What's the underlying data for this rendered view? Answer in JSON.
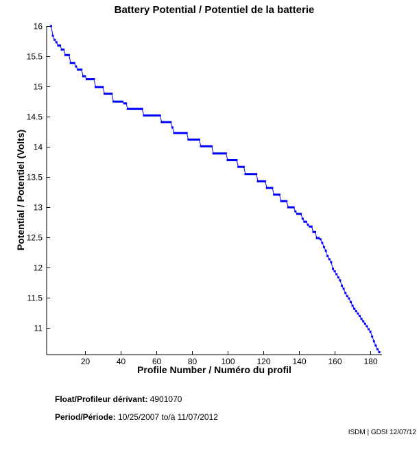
{
  "title": "Battery Potential / Potentiel de la batterie",
  "footer": {
    "float_label": "Float/Profileur dérivant:",
    "float_value": "4901070",
    "period_label": "Period/Période:",
    "period_value": "10/25/2007 to/à  11/07/2012",
    "credit": "ISDM | GDSI 12/07/12"
  },
  "chart_data": {
    "type": "line",
    "title": "Battery Potential / Potentiel de la batterie",
    "xlabel": "Profile Number / Numéro du profil",
    "ylabel": "Potential / Potentiel (Volts)",
    "line_color": "#0000FF",
    "axis_color": "#000000",
    "marker": "square",
    "grid": false,
    "legend": "none",
    "xlim": [
      -1.5,
      186.5
    ],
    "ylim": [
      10.56,
      16
    ],
    "x_ticks": [
      20,
      40,
      60,
      80,
      100,
      120,
      140,
      160,
      180
    ],
    "y_ticks": [
      11,
      11.5,
      12,
      12.5,
      13,
      13.5,
      14,
      14.5,
      15,
      15.5,
      16
    ],
    "series": [
      {
        "name": "battery-potential",
        "x_start": 1,
        "x_step": 1,
        "values": [
          16.0,
          15.84,
          15.77,
          15.73,
          15.68,
          15.68,
          15.61,
          15.61,
          15.52,
          15.52,
          15.52,
          15.39,
          15.39,
          15.39,
          15.33,
          15.28,
          15.28,
          15.28,
          15.17,
          15.17,
          15.12,
          15.12,
          15.12,
          15.12,
          15.12,
          14.99,
          14.99,
          14.99,
          14.99,
          14.99,
          14.88,
          14.88,
          14.88,
          14.88,
          14.88,
          14.75,
          14.75,
          14.75,
          14.75,
          14.75,
          14.75,
          14.72,
          14.72,
          14.63,
          14.63,
          14.63,
          14.63,
          14.63,
          14.63,
          14.63,
          14.63,
          14.63,
          14.52,
          14.52,
          14.52,
          14.52,
          14.52,
          14.52,
          14.52,
          14.52,
          14.52,
          14.52,
          14.41,
          14.41,
          14.41,
          14.41,
          14.41,
          14.41,
          14.32,
          14.23,
          14.23,
          14.23,
          14.23,
          14.23,
          14.23,
          14.23,
          14.23,
          14.12,
          14.12,
          14.12,
          14.12,
          14.12,
          14.12,
          14.12,
          14.01,
          14.01,
          14.01,
          14.01,
          14.01,
          14.01,
          14.01,
          13.89,
          13.89,
          13.89,
          13.89,
          13.89,
          13.89,
          13.89,
          13.89,
          13.78,
          13.78,
          13.78,
          13.78,
          13.78,
          13.78,
          13.67,
          13.67,
          13.67,
          13.67,
          13.55,
          13.55,
          13.55,
          13.55,
          13.55,
          13.55,
          13.55,
          13.43,
          13.43,
          13.43,
          13.43,
          13.43,
          13.32,
          13.32,
          13.32,
          13.32,
          13.21,
          13.21,
          13.21,
          13.21,
          13.1,
          13.1,
          13.1,
          13.1,
          13.0,
          13.0,
          13.0,
          13.0,
          12.93,
          12.89,
          12.89,
          12.89,
          12.81,
          12.76,
          12.76,
          12.71,
          12.68,
          12.68,
          12.59,
          12.59,
          12.49,
          12.49,
          12.47,
          12.41,
          12.34,
          12.28,
          12.19,
          12.14,
          12.09,
          11.98,
          11.94,
          11.89,
          11.84,
          11.79,
          11.7,
          11.65,
          11.58,
          11.53,
          11.49,
          11.43,
          11.37,
          11.32,
          11.28,
          11.24,
          11.2,
          11.15,
          11.11,
          11.07,
          11.03,
          10.98,
          10.94,
          10.86,
          10.78,
          10.71,
          10.65,
          10.6
        ]
      }
    ]
  }
}
